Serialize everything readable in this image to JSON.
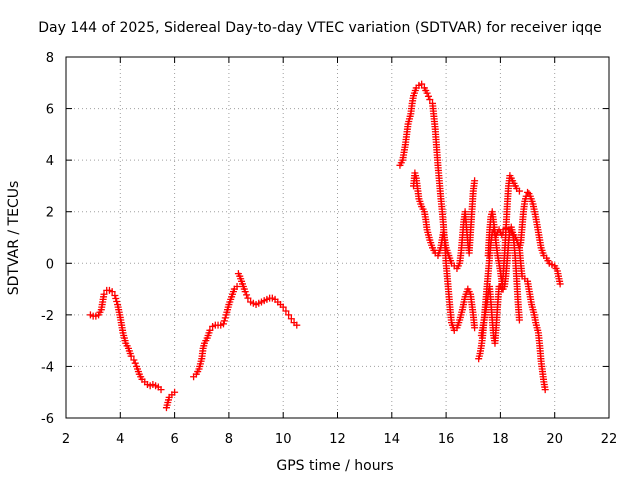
{
  "chart_data": {
    "type": "scatter",
    "title": "Day 144 of 2025, Sidereal Day-to-day VTEC variation (SDTVAR) for receiver iqqe",
    "xlabel": "GPS time / hours",
    "ylabel": "SDTVAR / TECUs",
    "xlim": [
      2,
      22
    ],
    "ylim": [
      -6,
      8
    ],
    "xticks": [
      2,
      4,
      6,
      8,
      10,
      12,
      14,
      16,
      18,
      20,
      22
    ],
    "yticks": [
      -6,
      -4,
      -2,
      0,
      2,
      4,
      6,
      8
    ],
    "grid": true,
    "marker": "+",
    "color": "#ff0000",
    "series": [
      {
        "name": "segment-1",
        "points": [
          [
            2.9,
            -2.0
          ],
          [
            3.0,
            -2.05
          ],
          [
            3.1,
            -2.05
          ],
          [
            3.2,
            -2.0
          ],
          [
            3.3,
            -1.8
          ],
          [
            3.35,
            -1.5
          ],
          [
            3.4,
            -1.2
          ],
          [
            3.5,
            -1.05
          ],
          [
            3.6,
            -1.05
          ],
          [
            3.7,
            -1.1
          ],
          [
            3.8,
            -1.25
          ],
          [
            3.9,
            -1.6
          ],
          [
            4.0,
            -2.1
          ],
          [
            4.1,
            -2.7
          ],
          [
            4.2,
            -3.1
          ],
          [
            4.3,
            -3.3
          ],
          [
            4.4,
            -3.6
          ],
          [
            4.5,
            -3.75
          ],
          [
            4.6,
            -4.0
          ],
          [
            4.7,
            -4.3
          ],
          [
            4.8,
            -4.5
          ],
          [
            4.9,
            -4.6
          ],
          [
            5.0,
            -4.7
          ],
          [
            5.1,
            -4.75
          ],
          [
            5.2,
            -4.7
          ],
          [
            5.3,
            -4.75
          ],
          [
            5.4,
            -4.8
          ],
          [
            5.5,
            -4.9
          ]
        ]
      },
      {
        "name": "segment-2",
        "points": [
          [
            5.7,
            -5.6
          ],
          [
            5.75,
            -5.4
          ],
          [
            5.8,
            -5.2
          ],
          [
            5.9,
            -5.1
          ],
          [
            6.0,
            -5.0
          ]
        ]
      },
      {
        "name": "segment-3",
        "points": [
          [
            6.7,
            -4.4
          ],
          [
            6.8,
            -4.3
          ],
          [
            6.9,
            -4.1
          ],
          [
            7.0,
            -3.7
          ],
          [
            7.05,
            -3.3
          ],
          [
            7.1,
            -3.1
          ],
          [
            7.2,
            -2.9
          ],
          [
            7.3,
            -2.6
          ],
          [
            7.4,
            -2.45
          ],
          [
            7.5,
            -2.4
          ],
          [
            7.6,
            -2.4
          ],
          [
            7.7,
            -2.4
          ],
          [
            7.8,
            -2.35
          ],
          [
            7.9,
            -2.0
          ],
          [
            8.0,
            -1.6
          ],
          [
            8.1,
            -1.3
          ],
          [
            8.2,
            -1.0
          ],
          [
            8.3,
            -0.9
          ]
        ]
      },
      {
        "name": "segment-4",
        "points": [
          [
            8.35,
            -0.4
          ],
          [
            8.4,
            -0.5
          ],
          [
            8.5,
            -0.8
          ],
          [
            8.6,
            -1.1
          ],
          [
            8.7,
            -1.35
          ],
          [
            8.8,
            -1.5
          ],
          [
            8.9,
            -1.55
          ],
          [
            9.0,
            -1.6
          ],
          [
            9.1,
            -1.55
          ],
          [
            9.2,
            -1.5
          ],
          [
            9.3,
            -1.45
          ],
          [
            9.4,
            -1.4
          ],
          [
            9.5,
            -1.35
          ],
          [
            9.6,
            -1.35
          ],
          [
            9.7,
            -1.4
          ],
          [
            9.8,
            -1.5
          ],
          [
            9.9,
            -1.6
          ],
          [
            10.0,
            -1.7
          ],
          [
            10.1,
            -1.85
          ],
          [
            10.2,
            -2.0
          ],
          [
            10.3,
            -2.15
          ],
          [
            10.4,
            -2.3
          ],
          [
            10.5,
            -2.4
          ]
        ]
      },
      {
        "name": "segment-5",
        "points": [
          [
            14.3,
            3.8
          ],
          [
            14.4,
            4.0
          ],
          [
            14.5,
            4.6
          ],
          [
            14.55,
            5.0
          ],
          [
            14.6,
            5.4
          ],
          [
            14.7,
            5.8
          ],
          [
            14.75,
            6.2
          ],
          [
            14.8,
            6.5
          ],
          [
            14.9,
            6.8
          ],
          [
            15.0,
            6.9
          ],
          [
            15.1,
            6.95
          ],
          [
            15.2,
            6.8
          ],
          [
            15.3,
            6.6
          ],
          [
            15.4,
            6.35
          ],
          [
            15.5,
            6.2
          ],
          [
            15.55,
            5.7
          ],
          [
            15.6,
            5.2
          ],
          [
            15.65,
            4.5
          ],
          [
            15.7,
            3.8
          ],
          [
            15.75,
            3.2
          ],
          [
            15.8,
            2.6
          ],
          [
            15.85,
            2.1
          ],
          [
            15.9,
            1.5
          ],
          [
            15.95,
            0.8
          ],
          [
            16.0,
            0.0
          ],
          [
            16.05,
            -0.6
          ],
          [
            16.1,
            -1.2
          ],
          [
            16.15,
            -1.8
          ],
          [
            16.2,
            -2.3
          ],
          [
            16.3,
            -2.6
          ],
          [
            16.4,
            -2.5
          ],
          [
            16.5,
            -2.2
          ],
          [
            16.6,
            -1.8
          ],
          [
            16.7,
            -1.3
          ],
          [
            16.8,
            -1.0
          ],
          [
            16.9,
            -1.2
          ],
          [
            16.95,
            -1.6
          ],
          [
            17.0,
            -2.0
          ],
          [
            17.05,
            -2.5
          ]
        ]
      },
      {
        "name": "segment-6",
        "points": [
          [
            14.8,
            3.0
          ],
          [
            14.85,
            3.5
          ],
          [
            14.9,
            3.3
          ],
          [
            14.95,
            2.9
          ],
          [
            15.0,
            2.5
          ],
          [
            15.1,
            2.2
          ],
          [
            15.2,
            2.0
          ],
          [
            15.25,
            1.7
          ],
          [
            15.3,
            1.3
          ],
          [
            15.4,
            0.9
          ],
          [
            15.5,
            0.6
          ],
          [
            15.6,
            0.4
          ],
          [
            15.7,
            0.3
          ],
          [
            15.8,
            0.6
          ],
          [
            15.85,
            0.9
          ],
          [
            15.9,
            1.2
          ],
          [
            15.95,
            0.9
          ],
          [
            16.0,
            0.6
          ],
          [
            16.1,
            0.3
          ],
          [
            16.2,
            0.0
          ],
          [
            16.3,
            -0.1
          ],
          [
            16.4,
            -0.2
          ],
          [
            16.5,
            0.0
          ],
          [
            16.55,
            0.4
          ],
          [
            16.6,
            1.0
          ],
          [
            16.65,
            1.6
          ],
          [
            16.7,
            2.0
          ],
          [
            16.75,
            1.4
          ],
          [
            16.8,
            0.8
          ],
          [
            16.85,
            0.4
          ],
          [
            16.9,
            1.2
          ],
          [
            16.95,
            2.0
          ],
          [
            17.0,
            2.8
          ],
          [
            17.05,
            3.2
          ]
        ]
      },
      {
        "name": "segment-7",
        "points": [
          [
            17.2,
            -3.7
          ],
          [
            17.25,
            -3.5
          ],
          [
            17.3,
            -3.2
          ],
          [
            17.35,
            -2.8
          ],
          [
            17.4,
            -2.2
          ],
          [
            17.45,
            -1.6
          ],
          [
            17.5,
            -1.0
          ],
          [
            17.55,
            -0.4
          ],
          [
            17.6,
            0.2
          ],
          [
            17.65,
            0.8
          ],
          [
            17.7,
            1.2
          ],
          [
            17.75,
            1.3
          ],
          [
            17.8,
            1.1
          ],
          [
            17.85,
            0.7
          ],
          [
            17.9,
            0.3
          ],
          [
            17.95,
            0.0
          ],
          [
            18.0,
            -0.3
          ],
          [
            18.05,
            -0.7
          ],
          [
            18.1,
            -1.0
          ],
          [
            18.15,
            -0.9
          ],
          [
            18.2,
            -0.5
          ],
          [
            18.25,
            0.1
          ],
          [
            18.3,
            0.8
          ],
          [
            18.35,
            1.3
          ],
          [
            18.4,
            1.4
          ],
          [
            18.45,
            1.2
          ],
          [
            18.5,
            0.8
          ],
          [
            18.55,
            0.2
          ],
          [
            18.6,
            -0.6
          ],
          [
            18.65,
            -1.5
          ],
          [
            18.7,
            -2.2
          ]
        ]
      },
      {
        "name": "segment-8",
        "points": [
          [
            17.3,
            -2.8
          ],
          [
            17.4,
            -2.2
          ],
          [
            17.5,
            -1.6
          ],
          [
            17.55,
            -1.2
          ],
          [
            17.6,
            -0.9
          ],
          [
            17.65,
            -1.5
          ],
          [
            17.7,
            -2.2
          ],
          [
            17.75,
            -2.8
          ],
          [
            17.8,
            -3.1
          ],
          [
            17.85,
            -2.4
          ],
          [
            17.9,
            -1.6
          ],
          [
            17.95,
            -0.9
          ],
          [
            18.0,
            -0.9
          ],
          [
            18.05,
            -1.0
          ],
          [
            18.1,
            -0.5
          ],
          [
            18.15,
            0.3
          ],
          [
            18.2,
            1.2
          ],
          [
            18.25,
            2.2
          ],
          [
            18.3,
            3.0
          ],
          [
            18.35,
            3.4
          ],
          [
            18.4,
            3.3
          ],
          [
            18.5,
            3.1
          ],
          [
            18.6,
            2.9
          ],
          [
            18.7,
            2.8
          ]
        ]
      },
      {
        "name": "segment-9",
        "points": [
          [
            17.55,
            0.3
          ],
          [
            17.6,
            1.2
          ],
          [
            17.65,
            1.8
          ],
          [
            17.7,
            2.0
          ],
          [
            17.75,
            1.6
          ],
          [
            17.8,
            1.2
          ],
          [
            17.85,
            1.1
          ],
          [
            17.9,
            1.2
          ],
          [
            17.95,
            1.3
          ],
          [
            18.0,
            1.2
          ],
          [
            18.05,
            1.1
          ],
          [
            18.1,
            1.2
          ],
          [
            18.2,
            1.35
          ],
          [
            18.3,
            1.3
          ],
          [
            18.4,
            1.2
          ],
          [
            18.5,
            1.1
          ],
          [
            18.6,
            0.9
          ],
          [
            18.7,
            0.6
          ],
          [
            18.75,
            0.8
          ],
          [
            18.8,
            1.4
          ],
          [
            18.85,
            2.0
          ],
          [
            18.9,
            2.4
          ],
          [
            18.95,
            2.6
          ],
          [
            19.0,
            2.75
          ],
          [
            19.05,
            2.7
          ],
          [
            19.1,
            2.6
          ],
          [
            19.2,
            2.3
          ],
          [
            19.3,
            1.8
          ],
          [
            19.4,
            1.2
          ],
          [
            19.5,
            0.6
          ],
          [
            19.6,
            0.3
          ],
          [
            19.7,
            0.2
          ],
          [
            19.8,
            0.0
          ],
          [
            19.9,
            -0.05
          ],
          [
            20.0,
            -0.1
          ],
          [
            20.1,
            -0.3
          ],
          [
            20.2,
            -0.8
          ]
        ]
      },
      {
        "name": "segment-10",
        "points": [
          [
            18.7,
            0.6
          ],
          [
            18.75,
            0.0
          ],
          [
            18.8,
            -0.5
          ],
          [
            18.9,
            -0.6
          ],
          [
            19.0,
            -0.7
          ],
          [
            19.05,
            -1.0
          ],
          [
            19.1,
            -1.3
          ],
          [
            19.15,
            -1.6
          ],
          [
            19.2,
            -1.8
          ],
          [
            19.25,
            -2.0
          ],
          [
            19.3,
            -2.3
          ],
          [
            19.35,
            -2.5
          ],
          [
            19.4,
            -2.7
          ],
          [
            19.45,
            -3.2
          ],
          [
            19.5,
            -3.8
          ],
          [
            19.55,
            -4.2
          ],
          [
            19.6,
            -4.6
          ],
          [
            19.65,
            -4.9
          ]
        ]
      }
    ]
  }
}
